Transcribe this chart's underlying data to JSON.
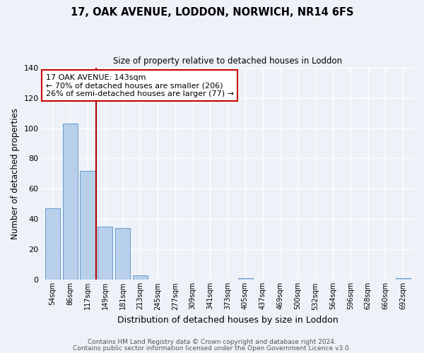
{
  "title": "17, OAK AVENUE, LODDON, NORWICH, NR14 6FS",
  "subtitle": "Size of property relative to detached houses in Loddon",
  "xlabel": "Distribution of detached houses by size in Loddon",
  "ylabel": "Number of detached properties",
  "bar_labels": [
    "54sqm",
    "86sqm",
    "117sqm",
    "149sqm",
    "181sqm",
    "213sqm",
    "245sqm",
    "277sqm",
    "309sqm",
    "341sqm",
    "373sqm",
    "405sqm",
    "437sqm",
    "469sqm",
    "500sqm",
    "532sqm",
    "564sqm",
    "596sqm",
    "628sqm",
    "660sqm",
    "692sqm"
  ],
  "bar_values": [
    47,
    103,
    72,
    35,
    34,
    3,
    0,
    0,
    0,
    0,
    0,
    1,
    0,
    0,
    0,
    0,
    0,
    0,
    0,
    0,
    1
  ],
  "bar_color": "#b8d0ea",
  "bar_edge_color": "#6699cc",
  "ylim": [
    0,
    140
  ],
  "yticks": [
    0,
    20,
    40,
    60,
    80,
    100,
    120,
    140
  ],
  "vline_color": "#aa0000",
  "annotation_text": "17 OAK AVENUE: 143sqm\n← 70% of detached houses are smaller (206)\n26% of semi-detached houses are larger (77) →",
  "annotation_box_color": "#ffffff",
  "annotation_box_edge_color": "#cc0000",
  "bg_color": "#eef2f8",
  "grid_color": "#ffffff",
  "footer1": "Contains HM Land Registry data © Crown copyright and database right 2024.",
  "footer2": "Contains public sector information licensed under the Open Government Licence v3.0."
}
